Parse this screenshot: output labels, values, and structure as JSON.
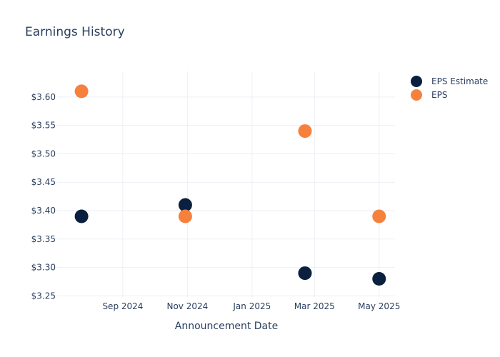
{
  "chart_data": {
    "type": "scatter",
    "title": "Earnings History",
    "xlabel": "Announcement Date",
    "ylabel": "",
    "x_ticks": [
      "Sep 2024",
      "Nov 2024",
      "Jan 2025",
      "Mar 2025",
      "May 2025"
    ],
    "x_tick_dates": [
      "2024-09-01",
      "2024-11-01",
      "2025-01-01",
      "2025-03-01",
      "2025-05-01"
    ],
    "x_range": [
      "2024-07-01",
      "2025-05-16"
    ],
    "y_ticks": [
      "$3.25",
      "$3.30",
      "$3.35",
      "$3.40",
      "$3.45",
      "$3.50",
      "$3.55",
      "$3.60"
    ],
    "y_tick_values": [
      3.25,
      3.3,
      3.35,
      3.4,
      3.45,
      3.5,
      3.55,
      3.6
    ],
    "ylim": [
      3.248,
      3.645
    ],
    "grid": true,
    "legend_position": "top-right",
    "series": [
      {
        "name": "EPS Estimate",
        "color": "#0b1f3f",
        "points": [
          {
            "x": "2024-07-24",
            "y": 3.39
          },
          {
            "x": "2024-10-30",
            "y": 3.41
          },
          {
            "x": "2025-02-20",
            "y": 3.29
          },
          {
            "x": "2025-05-01",
            "y": 3.28
          }
        ]
      },
      {
        "name": "EPS",
        "color": "#f5813c",
        "points": [
          {
            "x": "2024-07-24",
            "y": 3.61
          },
          {
            "x": "2024-10-30",
            "y": 3.39
          },
          {
            "x": "2025-02-20",
            "y": 3.54
          },
          {
            "x": "2025-05-01",
            "y": 3.39
          }
        ]
      }
    ]
  }
}
